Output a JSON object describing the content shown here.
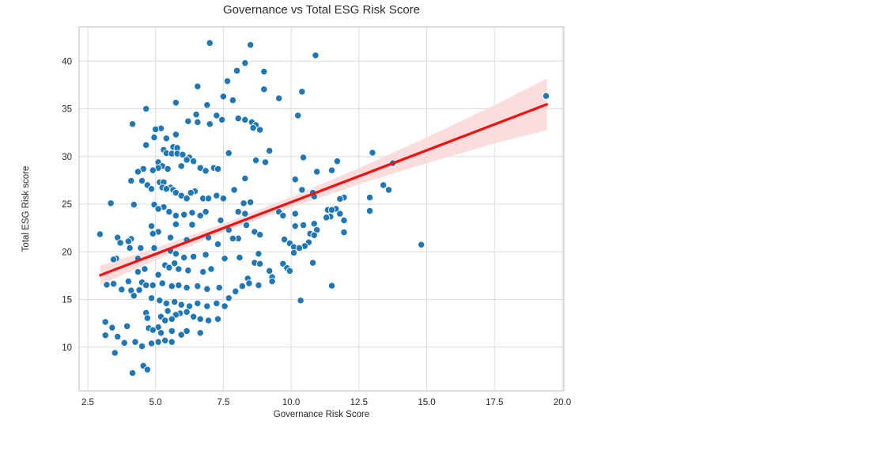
{
  "chart_data": {
    "type": "scatter",
    "title": "Governance vs Total ESG Risk Score",
    "xlabel": "Governance Risk Score",
    "ylabel": "Total ESG Risk score",
    "xlim": [
      2.18,
      20.06
    ],
    "ylim": [
      5.42,
      43.59
    ],
    "grid": true,
    "xticks": [
      2.5,
      5.0,
      7.5,
      10.0,
      12.5,
      15.0,
      17.5,
      20.0
    ],
    "xtick_labels": [
      "2.5",
      "5.0",
      "7.5",
      "10.0",
      "12.5",
      "15.0",
      "17.5",
      "20.0"
    ],
    "yticks": [
      10,
      15,
      20,
      25,
      30,
      35,
      40
    ],
    "ytick_labels": [
      "10",
      "15",
      "20",
      "25",
      "30",
      "35",
      "40"
    ],
    "regression_line": {
      "x1": 2.96,
      "y1": 17.55,
      "x2": 19.43,
      "y2": 35.47
    },
    "confidence_band": {
      "x": [
        2.96,
        5.0,
        7.5,
        10.0,
        12.5,
        15.0,
        17.5,
        19.43
      ],
      "upper": [
        18.55,
        20.42,
        22.94,
        25.76,
        28.78,
        32.0,
        35.37,
        38.17
      ],
      "lower": [
        16.55,
        19.12,
        22.04,
        24.66,
        27.08,
        29.3,
        31.37,
        32.77
      ]
    },
    "colors": {
      "point": "#1f77b4",
      "point_edge": "#ffffff",
      "line": "#fb0d0d",
      "band": "#fbd9d9",
      "grid": "#dcdcdc",
      "spine": "#cccccc",
      "text": "#262626"
    },
    "points": [
      [
        7.0,
        41.9
      ],
      [
        8.5,
        41.7
      ],
      [
        10.9,
        40.6
      ],
      [
        8.3,
        39.8
      ],
      [
        8.0,
        39.0
      ],
      [
        9.0,
        38.9
      ],
      [
        7.65,
        37.9
      ],
      [
        6.55,
        37.35
      ],
      [
        9.0,
        37.05
      ],
      [
        10.4,
        36.8
      ],
      [
        19.4,
        36.35
      ],
      [
        7.5,
        36.3
      ],
      [
        9.55,
        36.1
      ],
      [
        7.85,
        35.9
      ],
      [
        5.75,
        35.65
      ],
      [
        6.9,
        35.4
      ],
      [
        4.65,
        35.0
      ],
      [
        6.5,
        34.4
      ],
      [
        7.25,
        34.3
      ],
      [
        10.25,
        34.3
      ],
      [
        8.05,
        34.0
      ],
      [
        7.45,
        33.85
      ],
      [
        8.3,
        33.85
      ],
      [
        6.2,
        33.7
      ],
      [
        6.55,
        33.6
      ],
      [
        8.55,
        33.6
      ],
      [
        7.0,
        33.4
      ],
      [
        4.15,
        33.4
      ],
      [
        8.7,
        33.3
      ],
      [
        8.6,
        33.0
      ],
      [
        5.2,
        32.95
      ],
      [
        5.0,
        32.85
      ],
      [
        8.85,
        32.8
      ],
      [
        5.75,
        32.3
      ],
      [
        4.95,
        32.0
      ],
      [
        5.4,
        31.9
      ],
      [
        4.65,
        31.2
      ],
      [
        5.65,
        31.0
      ],
      [
        5.8,
        30.9
      ],
      [
        5.3,
        30.7
      ],
      [
        9.2,
        30.6
      ],
      [
        13.0,
        30.4
      ],
      [
        5.4,
        30.35
      ],
      [
        7.7,
        30.35
      ],
      [
        5.6,
        30.3
      ],
      [
        5.8,
        30.3
      ],
      [
        6.0,
        30.2
      ],
      [
        10.45,
        29.9
      ],
      [
        6.25,
        29.9
      ],
      [
        6.15,
        29.65
      ],
      [
        8.7,
        29.6
      ],
      [
        11.7,
        29.5
      ],
      [
        6.4,
        29.5
      ],
      [
        5.1,
        29.4
      ],
      [
        9.05,
        29.4
      ],
      [
        13.75,
        29.3
      ],
      [
        5.95,
        29.0
      ],
      [
        5.25,
        29.0
      ],
      [
        5.45,
        28.7
      ],
      [
        4.55,
        28.7
      ],
      [
        6.65,
        28.8
      ],
      [
        7.15,
        28.8
      ],
      [
        5.1,
        28.8
      ],
      [
        11.5,
        28.55
      ],
      [
        4.9,
        28.55
      ],
      [
        6.85,
        28.5
      ],
      [
        10.95,
        28.4
      ],
      [
        4.35,
        28.4
      ],
      [
        7.3,
        28.7
      ],
      [
        8.3,
        27.7
      ],
      [
        10.15,
        27.6
      ],
      [
        4.1,
        27.45
      ],
      [
        4.5,
        27.45
      ],
      [
        5.15,
        27.3
      ],
      [
        5.3,
        27.3
      ],
      [
        13.4,
        27.0
      ],
      [
        4.7,
        27.0
      ],
      [
        5.25,
        26.75
      ],
      [
        5.55,
        26.75
      ],
      [
        4.85,
        26.6
      ],
      [
        5.4,
        26.6
      ],
      [
        13.6,
        26.5
      ],
      [
        5.65,
        26.5
      ],
      [
        7.9,
        26.5
      ],
      [
        10.4,
        26.5
      ],
      [
        6.45,
        26.35
      ],
      [
        5.75,
        26.2
      ],
      [
        6.3,
        26.2
      ],
      [
        10.8,
        26.2
      ],
      [
        5.95,
        25.9
      ],
      [
        7.25,
        25.9
      ],
      [
        10.85,
        25.8
      ],
      [
        11.95,
        25.7
      ],
      [
        12.9,
        25.7
      ],
      [
        6.15,
        25.6
      ],
      [
        6.75,
        25.6
      ],
      [
        6.95,
        25.6
      ],
      [
        7.5,
        25.6
      ],
      [
        11.8,
        25.55
      ],
      [
        8.5,
        25.2
      ],
      [
        3.35,
        25.1
      ],
      [
        8.25,
        25.1
      ],
      [
        4.2,
        24.95
      ],
      [
        4.95,
        24.95
      ],
      [
        5.3,
        24.7
      ],
      [
        11.65,
        24.5
      ],
      [
        5.1,
        24.5
      ],
      [
        11.35,
        24.4
      ],
      [
        11.5,
        24.4
      ],
      [
        12.9,
        24.3
      ],
      [
        5.5,
        24.2
      ],
      [
        6.85,
        24.2
      ],
      [
        8.05,
        24.2
      ],
      [
        9.55,
        24.2
      ],
      [
        6.35,
        24.1
      ],
      [
        8.3,
        24.0
      ],
      [
        10.15,
        24.0
      ],
      [
        11.8,
        24.0
      ],
      [
        6.05,
        23.9
      ],
      [
        5.75,
        23.8
      ],
      [
        6.65,
        23.8
      ],
      [
        9.7,
        23.8
      ],
      [
        11.45,
        23.7
      ],
      [
        11.3,
        23.6
      ],
      [
        7.4,
        23.3
      ],
      [
        11.95,
        23.3
      ],
      [
        10.85,
        22.95
      ],
      [
        5.75,
        22.9
      ],
      [
        6.35,
        22.85
      ],
      [
        8.35,
        22.8
      ],
      [
        10.45,
        22.8
      ],
      [
        4.85,
        22.7
      ],
      [
        10.15,
        22.7
      ],
      [
        7.7,
        22.3
      ],
      [
        10.95,
        22.3
      ],
      [
        5.1,
        22.1
      ],
      [
        8.65,
        22.1
      ],
      [
        11.95,
        22.05
      ],
      [
        2.95,
        21.85
      ],
      [
        4.9,
        21.9
      ],
      [
        10.7,
        21.9
      ],
      [
        8.85,
        21.8
      ],
      [
        10.85,
        21.75
      ],
      [
        5.55,
        21.5
      ],
      [
        6.95,
        21.5
      ],
      [
        3.6,
        21.5
      ],
      [
        8.05,
        21.4
      ],
      [
        7.85,
        21.4
      ],
      [
        4.1,
        21.35
      ],
      [
        9.75,
        21.3
      ],
      [
        6.15,
        21.25
      ],
      [
        3.7,
        20.95
      ],
      [
        4.0,
        21.1
      ],
      [
        10.65,
        21.0
      ],
      [
        9.95,
        20.9
      ],
      [
        7.3,
        20.8
      ],
      [
        14.8,
        20.75
      ],
      [
        10.5,
        20.6
      ],
      [
        10.1,
        20.5
      ],
      [
        4.45,
        20.4
      ],
      [
        4.95,
        20.4
      ],
      [
        10.3,
        20.4
      ],
      [
        4.05,
        20.4
      ],
      [
        5.55,
        20.1
      ],
      [
        10.1,
        19.9
      ],
      [
        5.75,
        19.8
      ],
      [
        8.8,
        19.8
      ],
      [
        6.85,
        19.7
      ],
      [
        6.4,
        19.5
      ],
      [
        6.05,
        19.4
      ],
      [
        8.1,
        19.4
      ],
      [
        7.55,
        19.3
      ],
      [
        4.35,
        19.3
      ],
      [
        3.55,
        19.3
      ],
      [
        3.45,
        19.2
      ],
      [
        8.65,
        18.85
      ],
      [
        10.8,
        18.85
      ],
      [
        5.7,
        18.8
      ],
      [
        8.85,
        18.75
      ],
      [
        9.7,
        18.75
      ],
      [
        5.35,
        18.6
      ],
      [
        5.5,
        18.35
      ],
      [
        9.85,
        18.3
      ],
      [
        4.6,
        18.2
      ],
      [
        5.85,
        18.2
      ],
      [
        7.05,
        18.2
      ],
      [
        6.2,
        18.05
      ],
      [
        9.2,
        18.0
      ],
      [
        9.95,
        18.0
      ],
      [
        4.35,
        17.9
      ],
      [
        6.75,
        17.9
      ],
      [
        5.1,
        17.6
      ],
      [
        9.3,
        17.35
      ],
      [
        8.4,
        17.2
      ],
      [
        4.0,
        16.9
      ],
      [
        9.3,
        16.9
      ],
      [
        3.2,
        16.55
      ],
      [
        4.5,
        16.8
      ],
      [
        8.45,
        16.7
      ],
      [
        5.25,
        16.7
      ],
      [
        3.45,
        16.65
      ],
      [
        4.65,
        16.5
      ],
      [
        4.9,
        16.5
      ],
      [
        5.85,
        16.5
      ],
      [
        8.8,
        16.5
      ],
      [
        11.5,
        16.45
      ],
      [
        5.6,
        16.4
      ],
      [
        6.55,
        16.4
      ],
      [
        8.2,
        16.4
      ],
      [
        6.15,
        16.25
      ],
      [
        7.35,
        16.25
      ],
      [
        6.9,
        16.1
      ],
      [
        3.75,
        16.05
      ],
      [
        4.4,
        16.0
      ],
      [
        7.95,
        15.85
      ],
      [
        4.1,
        15.95
      ],
      [
        4.2,
        15.4
      ],
      [
        4.85,
        15.15
      ],
      [
        7.7,
        15.15
      ],
      [
        5.15,
        14.9
      ],
      [
        10.35,
        14.9
      ],
      [
        5.7,
        14.75
      ],
      [
        5.4,
        14.6
      ],
      [
        6.55,
        14.6
      ],
      [
        7.25,
        14.6
      ],
      [
        5.95,
        14.45
      ],
      [
        6.25,
        14.3
      ],
      [
        6.9,
        14.3
      ],
      [
        7.55,
        14.3
      ],
      [
        5.45,
        13.8
      ],
      [
        6.15,
        13.7
      ],
      [
        4.65,
        13.6
      ],
      [
        5.9,
        13.55
      ],
      [
        5.75,
        13.4
      ],
      [
        5.2,
        13.2
      ],
      [
        6.4,
        13.2
      ],
      [
        4.7,
        13.05
      ],
      [
        5.6,
        12.95
      ],
      [
        6.65,
        12.95
      ],
      [
        7.3,
        12.95
      ],
      [
        5.35,
        12.8
      ],
      [
        6.95,
        12.8
      ],
      [
        3.15,
        12.65
      ],
      [
        3.95,
        12.2
      ],
      [
        5.1,
        12.1
      ],
      [
        4.75,
        12.0
      ],
      [
        3.4,
        12.05
      ],
      [
        4.9,
        11.8
      ],
      [
        5.6,
        11.7
      ],
      [
        6.15,
        11.7
      ],
      [
        5.2,
        11.5
      ],
      [
        6.65,
        11.5
      ],
      [
        5.95,
        11.3
      ],
      [
        3.15,
        11.25
      ],
      [
        3.6,
        11.1
      ],
      [
        5.35,
        10.7
      ],
      [
        4.25,
        10.55
      ],
      [
        5.1,
        10.55
      ],
      [
        5.6,
        10.55
      ],
      [
        3.85,
        10.45
      ],
      [
        4.85,
        10.4
      ],
      [
        4.5,
        10.1
      ],
      [
        3.5,
        9.4
      ],
      [
        4.55,
        8.05
      ],
      [
        4.7,
        7.65
      ],
      [
        4.15,
        7.3
      ]
    ]
  }
}
